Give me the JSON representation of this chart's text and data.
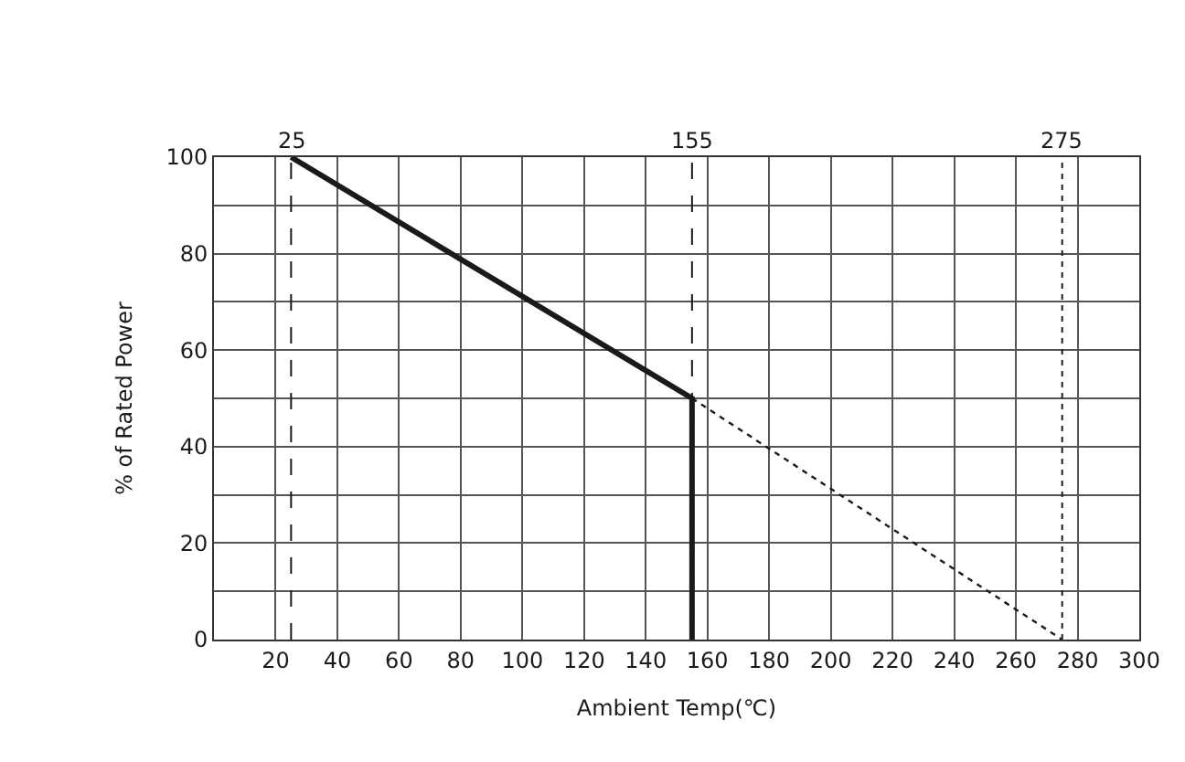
{
  "chart_data": {
    "type": "line",
    "xlabel": "Ambient Temp(℃)",
    "ylabel": "% of Rated Power",
    "series": [
      {
        "color": "#1a1a1a",
        "x": [
          25,
          155,
          155
        ],
        "values": [
          100,
          50,
          0
        ],
        "line_style": "solid"
      },
      {
        "color": "#1a1a1a",
        "x": [
          155,
          275
        ],
        "values": [
          50,
          0
        ],
        "line_style": "dotted"
      }
    ],
    "xlim": [
      0,
      300
    ],
    "xticks": [
      20,
      40,
      60,
      80,
      100,
      120,
      140,
      160,
      180,
      200,
      220,
      240,
      260,
      280,
      300
    ],
    "ylim": [
      0,
      100
    ],
    "yticks": [
      0,
      {
        "value": 10,
        "label": null
      },
      20,
      {
        "value": 30,
        "label": null
      },
      40,
      {
        "value": 50,
        "label": null
      },
      60,
      {
        "value": 70,
        "label": null
      },
      80,
      {
        "value": 90,
        "label": null
      },
      100
    ],
    "ref_lines": [
      {
        "axis": "x",
        "value": 25,
        "label": "25",
        "line_style": "dashed",
        "color": "#1a1a1a"
      },
      {
        "axis": "x",
        "value": 155,
        "label": "155",
        "line_style": "dashed",
        "color": "#1a1a1a"
      },
      {
        "axis": "x",
        "value": 275,
        "label": "275",
        "line_style": "dotted",
        "color": "#1a1a1a"
      }
    ],
    "grid": true
  }
}
